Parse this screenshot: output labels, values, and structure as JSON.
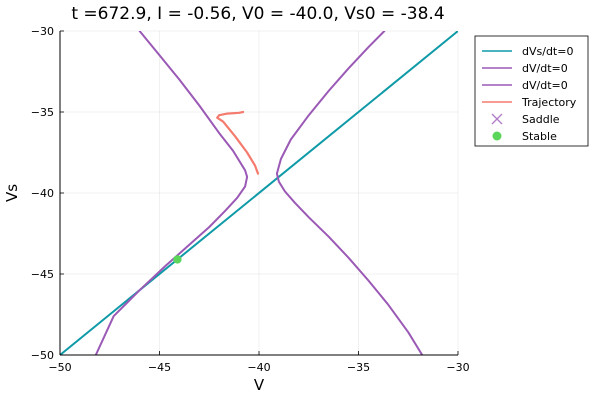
{
  "colors": {
    "nullcline_vs": "#0e9aa7",
    "nullcline_v": "#9b59b6",
    "trajectory": "#f47b6e",
    "saddle": "#b07cc6",
    "stable": "#5bd65b",
    "grid": "#e6e6e6"
  },
  "chart_data": {
    "type": "line",
    "title": "t =672.9, I = -0.56, V0 = -40.0, Vs0 = -38.4",
    "xlabel": "V",
    "ylabel": "Vs",
    "xlim": [
      -50,
      -30
    ],
    "ylim": [
      -50,
      -30
    ],
    "xticks": [
      -50,
      -45,
      -40,
      -35,
      -30
    ],
    "yticks": [
      -50,
      -45,
      -40,
      -35,
      -30
    ],
    "xtick_labels": [
      "−50",
      "−45",
      "−40",
      "−35",
      "−30"
    ],
    "ytick_labels": [
      "−50",
      "−45",
      "−40",
      "−35",
      "−30"
    ],
    "grid": true,
    "legend_position": "top-right",
    "series": [
      {
        "name": "dVs/dt=0",
        "kind": "line",
        "color": "#0e9aa7",
        "x": [
          -50,
          -30
        ],
        "y": [
          -50,
          -30
        ]
      },
      {
        "name": "dV/dt=0",
        "kind": "line",
        "color": "#9b59b6",
        "x": [
          -46.0,
          -45.0,
          -44.0,
          -43.0,
          -42.0,
          -41.3,
          -40.7,
          -40.6,
          -40.7,
          -41.1,
          -41.7,
          -42.5,
          -43.5,
          -44.7,
          -46.0,
          -47.3,
          -48.2
        ],
        "y": [
          -30.0,
          -31.5,
          -33.0,
          -34.6,
          -36.3,
          -37.4,
          -38.6,
          -39.0,
          -39.6,
          -40.3,
          -41.1,
          -42.1,
          -43.2,
          -44.5,
          -46.0,
          -47.6,
          -50.0
        ]
      },
      {
        "name": "dV/dt=0",
        "kind": "line",
        "color": "#9b59b6",
        "x": [
          -33.7,
          -34.5,
          -35.5,
          -36.5,
          -37.5,
          -38.4,
          -38.9,
          -39.1,
          -39.0,
          -38.7,
          -38.2,
          -37.5,
          -36.5,
          -35.5,
          -34.5,
          -33.5,
          -32.5,
          -31.8
        ],
        "y": [
          -30.0,
          -31.0,
          -32.3,
          -33.7,
          -35.2,
          -36.7,
          -37.9,
          -38.8,
          -39.3,
          -39.9,
          -40.6,
          -41.5,
          -42.7,
          -44.0,
          -45.4,
          -46.9,
          -48.6,
          -50.0
        ]
      },
      {
        "name": "Trajectory",
        "kind": "line",
        "color": "#f47b6e",
        "x": [
          -40.05,
          -40.2,
          -40.6,
          -41.2,
          -41.8,
          -42.1,
          -42.0,
          -41.6,
          -41.0,
          -40.8
        ],
        "y": [
          -38.8,
          -38.3,
          -37.5,
          -36.5,
          -35.6,
          -35.35,
          -35.2,
          -35.1,
          -35.05,
          -35.0
        ]
      },
      {
        "name": "Saddle",
        "kind": "marker-x",
        "color": "#b07cc6",
        "x": [],
        "y": []
      },
      {
        "name": "Stable",
        "kind": "marker-dot",
        "color": "#5bd65b",
        "x": [
          -44.1
        ],
        "y": [
          -44.1
        ]
      }
    ],
    "legend": [
      "dVs/dt=0",
      "dV/dt=0",
      "dV/dt=0",
      "Trajectory",
      "Saddle",
      "Stable"
    ]
  }
}
